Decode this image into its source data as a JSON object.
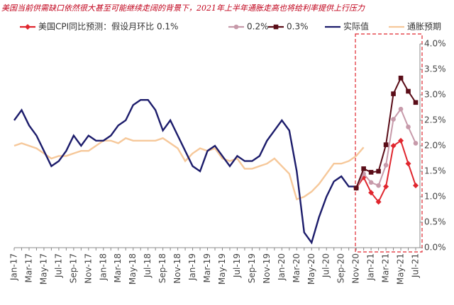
{
  "chart_data": {
    "type": "line",
    "title": "美国当前供需缺口依然很大甚至可能继续走阔的背景下，2021年上半年通胀走高也将给利率提供上行压力",
    "categories": [
      "Jan-17",
      null,
      "Mar-17",
      null,
      "May-17",
      null,
      "Jul-17",
      null,
      "Sep-17",
      null,
      "Nov-17",
      null,
      "Jan-18",
      null,
      "Mar-18",
      null,
      "May-18",
      null,
      "Jul-18",
      null,
      "Sep-18",
      null,
      "Nov-18",
      null,
      "Jan-19",
      null,
      "Mar-19",
      null,
      "May-19",
      null,
      "Jul-19",
      null,
      "Sep-19",
      null,
      "Nov-19",
      null,
      "Jan-20",
      null,
      "Mar-20",
      null,
      "May-20",
      null,
      "Jul-20",
      null,
      "Sep-20",
      null,
      "Nov-20",
      null,
      "Jan-21",
      null,
      "Mar-21",
      null,
      "May-21",
      null,
      "Jul-21"
    ],
    "series": [
      {
        "name": "美国CPI同比预测：假设月环比 0.1%",
        "color": "#e0262e",
        "marker": "diamond",
        "values": [
          null,
          null,
          null,
          null,
          null,
          null,
          null,
          null,
          null,
          null,
          null,
          null,
          null,
          null,
          null,
          null,
          null,
          null,
          null,
          null,
          null,
          null,
          null,
          null,
          null,
          null,
          null,
          null,
          null,
          null,
          null,
          null,
          null,
          null,
          null,
          null,
          null,
          null,
          null,
          null,
          null,
          null,
          null,
          null,
          null,
          null,
          1.17,
          1.38,
          1.08,
          0.9,
          1.2,
          2.0,
          2.1,
          1.65,
          1.22
        ]
      },
      {
        "name": "0.2%",
        "color": "#c79aaa",
        "marker": "circle",
        "values": [
          null,
          null,
          null,
          null,
          null,
          null,
          null,
          null,
          null,
          null,
          null,
          null,
          null,
          null,
          null,
          null,
          null,
          null,
          null,
          null,
          null,
          null,
          null,
          null,
          null,
          null,
          null,
          null,
          null,
          null,
          null,
          null,
          null,
          null,
          null,
          null,
          null,
          null,
          null,
          null,
          null,
          null,
          null,
          null,
          null,
          null,
          1.17,
          1.45,
          1.28,
          1.22,
          1.62,
          2.52,
          2.72,
          2.37,
          2.05
        ]
      },
      {
        "name": "0.3%",
        "color": "#5a0d18",
        "marker": "square",
        "values": [
          null,
          null,
          null,
          null,
          null,
          null,
          null,
          null,
          null,
          null,
          null,
          null,
          null,
          null,
          null,
          null,
          null,
          null,
          null,
          null,
          null,
          null,
          null,
          null,
          null,
          null,
          null,
          null,
          null,
          null,
          null,
          null,
          null,
          null,
          null,
          null,
          null,
          null,
          null,
          null,
          null,
          null,
          null,
          null,
          null,
          null,
          1.17,
          1.55,
          1.48,
          1.5,
          2.02,
          3.02,
          3.33,
          3.07,
          2.85
        ]
      },
      {
        "name": "实际值",
        "color": "#1c1c6b",
        "values": [
          2.5,
          2.7,
          2.4,
          2.2,
          1.9,
          1.6,
          1.7,
          1.9,
          2.2,
          2.0,
          2.2,
          2.1,
          2.1,
          2.2,
          2.4,
          2.5,
          2.8,
          2.9,
          2.9,
          2.7,
          2.3,
          2.5,
          2.2,
          1.9,
          1.6,
          1.5,
          1.9,
          2.0,
          1.8,
          1.6,
          1.8,
          1.7,
          1.7,
          1.8,
          2.1,
          2.3,
          2.5,
          2.3,
          1.5,
          0.3,
          0.1,
          0.6,
          1.0,
          1.3,
          1.4,
          1.2,
          1.2,
          null,
          null,
          null,
          null,
          null,
          null,
          null,
          null
        ]
      },
      {
        "name": "通胀预期",
        "color": "#f6c89a",
        "values": [
          2.0,
          2.05,
          2.0,
          1.95,
          1.85,
          1.75,
          1.8,
          1.8,
          1.85,
          1.9,
          1.9,
          2.0,
          2.1,
          2.1,
          2.05,
          2.15,
          2.1,
          2.1,
          2.1,
          2.1,
          2.15,
          2.05,
          1.95,
          1.7,
          1.85,
          1.95,
          1.9,
          1.95,
          1.75,
          1.7,
          1.75,
          1.55,
          1.55,
          1.6,
          1.65,
          1.75,
          1.6,
          1.45,
          0.95,
          1.0,
          1.1,
          1.25,
          1.45,
          1.65,
          1.65,
          1.7,
          1.8,
          1.97,
          null,
          null,
          null,
          null,
          null,
          null,
          null
        ]
      }
    ],
    "ylim": [
      0,
      4
    ],
    "yticks": [
      {
        "value": 0,
        "label": "0.0%"
      },
      {
        "value": 0.5,
        "label": "0.5%"
      },
      {
        "value": 1,
        "label": "1.0%"
      },
      {
        "value": 1.5,
        "label": "1.5%"
      },
      {
        "value": 2,
        "label": "2.0%"
      },
      {
        "value": 2.5,
        "label": "2.5%"
      },
      {
        "value": 3,
        "label": "3.0%"
      },
      {
        "value": 3.5,
        "label": "3.5%"
      },
      {
        "value": 4,
        "label": "4.0%"
      }
    ],
    "grid": false
  }
}
